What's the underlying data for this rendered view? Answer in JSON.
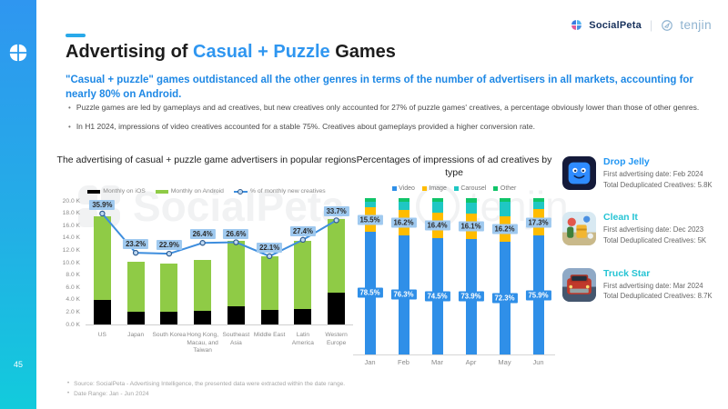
{
  "brand": {
    "socialpeta": "SocialPeta",
    "tenjin": "tenjin",
    "divider": "|",
    "page_number": "45",
    "watermark_left": "SocialPeta",
    "watermark_right": "tenjin"
  },
  "header": {
    "title_prefix": "Advertising of ",
    "title_highlight": "Casual + Puzzle",
    "title_suffix": " Games",
    "subtitle": "\"Casual + puzzle\" games outdistanced all the other genres in terms of the number of advertisers in all markets, accounting for nearly 80% on Android.",
    "bullets": [
      "Puzzle games are led by gameplays and ad creatives, but new creatives only accounted for 27% of puzzle games' creatives, a percentage obviously lower than those of other genres.",
      "In H1 2024, impressions of video creatives accounted for a stable 75%. Creatives about gameplays provided a higher conversion rate."
    ]
  },
  "chart_data": [
    {
      "type": "bar",
      "title": "The advertising of casual + puzzle game advertisers in popular regions",
      "categories": [
        "US",
        "Japan",
        "South Korea",
        "Hong Kong, Macau, and Taiwan",
        "Southeast Asia",
        "Middle East",
        "Latin America",
        "Western Europe"
      ],
      "series": [
        {
          "name": "Monthly on iOS",
          "type": "bar",
          "color": "#000000",
          "values": [
            4000,
            2000,
            2000,
            2200,
            3000,
            2300,
            2500,
            5200
          ]
        },
        {
          "name": "Monthly on Android",
          "type": "bar",
          "color": "#8FCB46",
          "values": [
            13500,
            8100,
            7900,
            8300,
            10500,
            8700,
            11100,
            11800
          ]
        },
        {
          "name": "% of monthly new creatives",
          "type": "line",
          "color": "#3E8EDE",
          "values": [
            35.9,
            23.2,
            22.9,
            26.4,
            26.6,
            22.1,
            27.4,
            33.7
          ]
        }
      ],
      "y_axis": {
        "min": 0,
        "max": 20000,
        "step": 2000
      },
      "y_ticks": [
        "20.0 K",
        "18.0 K",
        "16.0 K",
        "14.0 K",
        "12.0 K",
        "10.0 K",
        "8.0 K",
        "6.0 K",
        "4.0 K",
        "2.0 K",
        "0.0 K"
      ],
      "y2_axis": {
        "min": 0,
        "max": 40
      },
      "grid": false,
      "legend_position": "top",
      "stacked": true
    },
    {
      "type": "bar",
      "subtype": "stacked-100",
      "title": "Percentages of impressions of ad creatives by type",
      "categories": [
        "Jan",
        "Feb",
        "Mar",
        "Apr",
        "May",
        "Jun"
      ],
      "series": [
        {
          "name": "Video",
          "color": "#2F8FE8",
          "values": [
            78.5,
            76.3,
            74.5,
            73.9,
            72.3,
            75.9
          ],
          "labeled": true
        },
        {
          "name": "Image",
          "color": "#FFBC00",
          "values": [
            15.5,
            16.2,
            16.4,
            16.1,
            16.2,
            17.3
          ],
          "labeled": true
        },
        {
          "name": "Carousel",
          "color": "#1FC7C3",
          "values": [
            3.5,
            5.0,
            6.5,
            7.0,
            9.2,
            4.5
          ],
          "labeled": false
        },
        {
          "name": "Other",
          "color": "#10C469",
          "values": [
            2.5,
            2.5,
            2.6,
            3.0,
            2.5,
            2.3
          ],
          "labeled": false
        }
      ],
      "y_axis": {
        "min": 0,
        "max": 100
      },
      "grid": false,
      "legend_position": "top"
    }
  ],
  "apps": [
    {
      "name": "Drop Jelly",
      "title_color": "#2196F3",
      "line1": "First advertising date: Feb 2024",
      "line2": "Total Deduplicated Creatives: 5.8K"
    },
    {
      "name": "Clean It",
      "title_color": "#26C4D4",
      "line1": "First advertising date: Dec 2023",
      "line2": "Total Deduplicated Creatives: 5K"
    },
    {
      "name": "Truck Star",
      "title_color": "#26C4D4",
      "line1": "First advertising date: Mar 2024",
      "line2": "Total Deduplicated Creatives: 8.7K"
    }
  ],
  "footnotes": [
    "Source: SocialPeta - Advertising Intelligence, the presented data were extracted within the date range.",
    "Date Range: Jan - Jun 2024"
  ]
}
